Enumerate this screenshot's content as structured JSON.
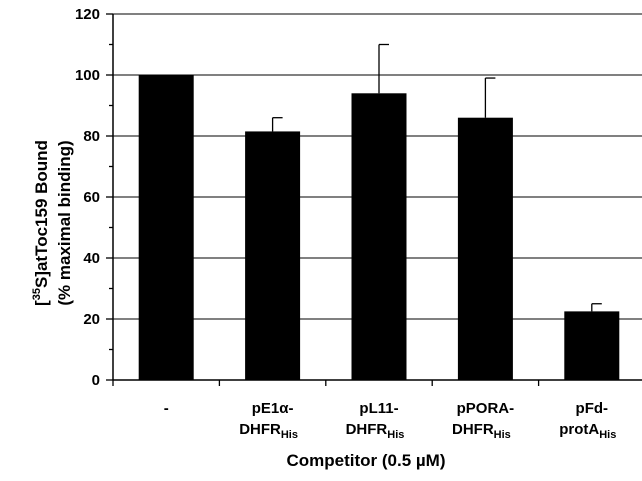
{
  "chart_data": {
    "type": "bar",
    "categories": [
      {
        "main": "-",
        "line2": "",
        "sub": ""
      },
      {
        "main": "pE1α-",
        "line2": "DHFR",
        "sub": "His"
      },
      {
        "main": "pL11-",
        "line2": "DHFR",
        "sub": "His"
      },
      {
        "main": "pPORA-",
        "line2": "DHFR",
        "sub": "His"
      },
      {
        "main": "pFd-",
        "line2": "protA",
        "sub": "His"
      }
    ],
    "values": [
      100,
      81.5,
      94,
      86,
      22.5
    ],
    "errors": [
      0,
      4.5,
      16,
      13,
      2.5
    ],
    "xlabel": "Competitor (0.5 µM)",
    "ylabel": {
      "line1_prefix": "[",
      "line1_sup": "35",
      "line1_rest": "S]atToc159 Bound",
      "line2": "(% maximal binding)"
    },
    "ylim": [
      0,
      120
    ],
    "yticks": [
      0,
      20,
      40,
      60,
      80,
      100,
      120
    ],
    "grid": true,
    "bar_color": "#000000"
  }
}
